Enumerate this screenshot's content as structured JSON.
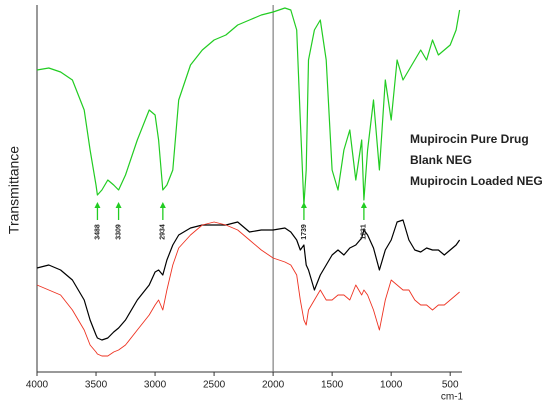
{
  "chart_data": {
    "type": "line",
    "ylabel": "Transmittance",
    "xlabel": "cm-1",
    "x": [
      4000,
      3900,
      3800,
      3700,
      3600,
      3550,
      3500,
      3488,
      3450,
      3400,
      3350,
      3309,
      3250,
      3150,
      3050,
      3000,
      2970,
      2934,
      2900,
      2850,
      2800,
      2700,
      2600,
      2500,
      2400,
      2300,
      2200,
      2100,
      2000,
      1900,
      1850,
      1800,
      1770,
      1739,
      1720,
      1700,
      1650,
      1600,
      1550,
      1500,
      1450,
      1400,
      1350,
      1300,
      1250,
      1231,
      1200,
      1150,
      1100,
      1050,
      1000,
      950,
      900,
      850,
      800,
      750,
      700,
      650,
      600,
      550,
      500,
      450,
      420
    ],
    "series": [
      {
        "name": "Mupirocin Pure Drug",
        "color": "#22cc22",
        "values": [
          302,
          304,
          300,
          292,
          262,
          222,
          187,
          177,
          182,
          192,
          187,
          182,
          197,
          232,
          262,
          257,
          232,
          182,
          187,
          202,
          272,
          307,
          322,
          332,
          337,
          347,
          352,
          357,
          360,
          364,
          362,
          342,
          252,
          167,
          202,
          312,
          342,
          352,
          312,
          202,
          182,
          222,
          242,
          192,
          232,
          172,
          222,
          272,
          202,
          292,
          252,
          312,
          292,
          302,
          312,
          322,
          312,
          332,
          317,
          322,
          327,
          342,
          362
        ]
      },
      {
        "name": "Blank NEG",
        "color": "#000000",
        "values": [
          104,
          107,
          102,
          92,
          72,
          52,
          37,
          34,
          32,
          34,
          40,
          44,
          52,
          72,
          87,
          100,
          102,
          97,
          112,
          127,
          137,
          144,
          147,
          147,
          147,
          150,
          140,
          142,
          142,
          144,
          140,
          132,
          122,
          127,
          107,
          102,
          82,
          97,
          107,
          117,
          122,
          117,
          124,
          127,
          134,
          142,
          137,
          124,
          102,
          122,
          132,
          150,
          152,
          132,
          122,
          120,
          124,
          122,
          122,
          117,
          122,
          127,
          132
        ]
      },
      {
        "name": "Mupirocin Loaded NEG",
        "color": "#ee3322",
        "values": [
          87,
          82,
          77,
          62,
          42,
          27,
          20,
          18,
          16,
          16,
          20,
          22,
          27,
          42,
          57,
          67,
          72,
          62,
          82,
          107,
          124,
          137,
          147,
          150,
          147,
          142,
          132,
          122,
          114,
          110,
          107,
          97,
          72,
          52,
          47,
          62,
          72,
          82,
          72,
          72,
          77,
          77,
          72,
          87,
          77,
          82,
          77,
          62,
          42,
          72,
          92,
          87,
          82,
          82,
          72,
          67,
          67,
          62,
          67,
          67,
          72,
          77,
          80
        ]
      }
    ],
    "annotations": [
      {
        "text": "3488",
        "x": 3488
      },
      {
        "text": "3309",
        "x": 3309
      },
      {
        "text": "2934",
        "x": 2934
      },
      {
        "text": "1739",
        "x": 1739
      },
      {
        "text": "1231",
        "x": 1231
      }
    ],
    "xlim": [
      4000,
      400
    ],
    "xticks": [
      4000,
      3500,
      3000,
      2500,
      2000,
      1500,
      1000,
      500
    ],
    "ylim": [
      0,
      367
    ],
    "vline": 2000
  }
}
